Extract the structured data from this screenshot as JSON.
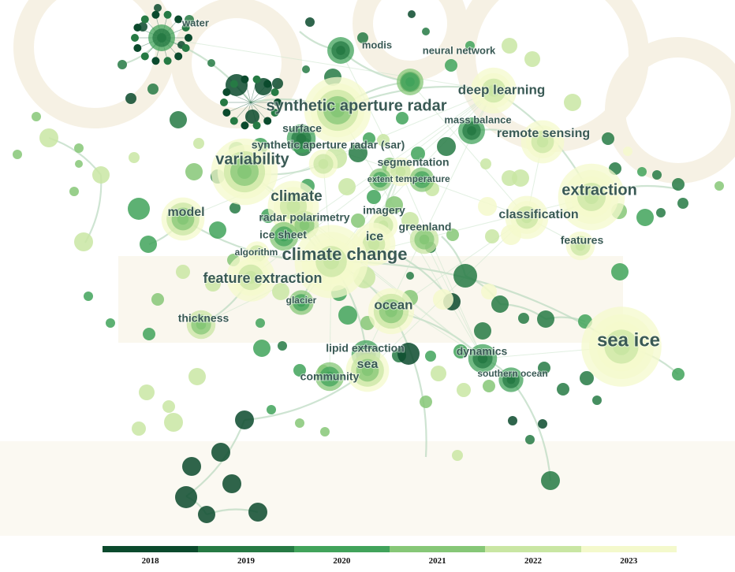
{
  "legend": {
    "years": [
      "2018",
      "2019",
      "2020",
      "2021",
      "2022",
      "2023"
    ],
    "colors": [
      "#0b4a2d",
      "#267a44",
      "#41a35b",
      "#86c777",
      "#c9e6a3",
      "#f4f9cc"
    ]
  },
  "keywords": [
    {
      "label": "water",
      "size": 13,
      "color_index": 1
    },
    {
      "label": "modis",
      "size": 13,
      "color_index": 1
    },
    {
      "label": "neural network",
      "size": 13,
      "color_index": 2
    },
    {
      "label": "deep learning",
      "size": 17,
      "color_index": 4
    },
    {
      "label": "synthetic aperture radar",
      "size": 20,
      "color_index": 3
    },
    {
      "label": "mass balance",
      "size": 13,
      "color_index": 1
    },
    {
      "label": "surface",
      "size": 14,
      "color_index": 1
    },
    {
      "label": "remote sensing",
      "size": 16,
      "color_index": 4
    },
    {
      "label": "synthetic aperture radar (sar)",
      "size": 14,
      "color_index": 4
    },
    {
      "label": "variability",
      "size": 20,
      "color_index": 3
    },
    {
      "label": "segmentation",
      "size": 14,
      "color_index": 4
    },
    {
      "label": "extent",
      "size": 11,
      "color_index": 2
    },
    {
      "label": "temperature",
      "size": 12,
      "color_index": 2
    },
    {
      "label": "extraction",
      "size": 20,
      "color_index": 4
    },
    {
      "label": "climate",
      "size": 19,
      "color_index": 4
    },
    {
      "label": "model",
      "size": 16,
      "color_index": 3
    },
    {
      "label": "imagery",
      "size": 14,
      "color_index": 4
    },
    {
      "label": "classification",
      "size": 16,
      "color_index": 4
    },
    {
      "label": "radar polarimetry",
      "size": 14,
      "color_index": 3
    },
    {
      "label": "greenland",
      "size": 14,
      "color_index": 3
    },
    {
      "label": "ice sheet",
      "size": 14,
      "color_index": 2
    },
    {
      "label": "ice",
      "size": 16,
      "color_index": 4
    },
    {
      "label": "features",
      "size": 14,
      "color_index": 4
    },
    {
      "label": "algorithm",
      "size": 12,
      "color_index": 4
    },
    {
      "label": "climate change",
      "size": 22,
      "color_index": 4
    },
    {
      "label": "feature extraction",
      "size": 18,
      "color_index": 4
    },
    {
      "label": "glacier",
      "size": 12,
      "color_index": 2
    },
    {
      "label": "ocean",
      "size": 17,
      "color_index": 3
    },
    {
      "label": "thickness",
      "size": 14,
      "color_index": 3
    },
    {
      "label": "sea ice",
      "size": 24,
      "color_index": 4
    },
    {
      "label": "lipid extraction",
      "size": 14,
      "color_index": 1
    },
    {
      "label": "dynamics",
      "size": 14,
      "color_index": 1
    },
    {
      "label": "sea",
      "size": 16,
      "color_index": 3
    },
    {
      "label": "community",
      "size": 14,
      "color_index": 2
    },
    {
      "label": "southern ocean",
      "size": 12,
      "color_index": 1
    }
  ]
}
